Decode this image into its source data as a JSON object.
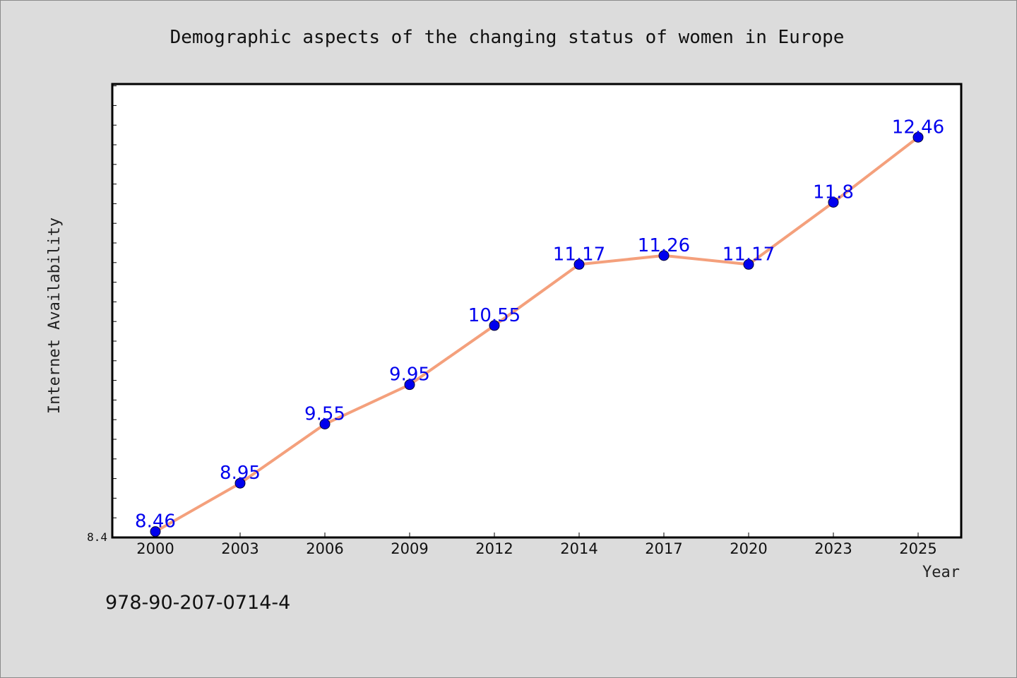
{
  "chart_data": {
    "type": "line",
    "title": "Demographic aspects of the changing status of women in Europe",
    "xlabel": "Year",
    "ylabel": "Internet Availability",
    "categories": [
      "2000",
      "2003",
      "2006",
      "2009",
      "2012",
      "2014",
      "2017",
      "2020",
      "2023",
      "2025"
    ],
    "series": [
      {
        "values": [
          8.46,
          8.95,
          9.55,
          9.95,
          10.55,
          11.17,
          11.26,
          11.17,
          11.8,
          12.46
        ],
        "data_labels": [
          "8.46",
          "8.95",
          "9.55",
          "9.95",
          "10.55",
          "11.17",
          "11.26",
          "11.17",
          "11.8",
          "12.46"
        ],
        "line_color": "#f4a07c",
        "marker_color": "#0000ee"
      }
    ],
    "ylim": [
      8.4,
      13.0
    ],
    "y_tick_labels": [
      "8.4"
    ],
    "grid": false,
    "legend": "none"
  },
  "footer": {
    "isbn": "978-90-207-0714-4"
  },
  "colors": {
    "background": "#dcdcdc",
    "plot_background": "#ffffff",
    "line": "#f4a07c",
    "marker": "#0000ee",
    "label": "#0000ee"
  }
}
